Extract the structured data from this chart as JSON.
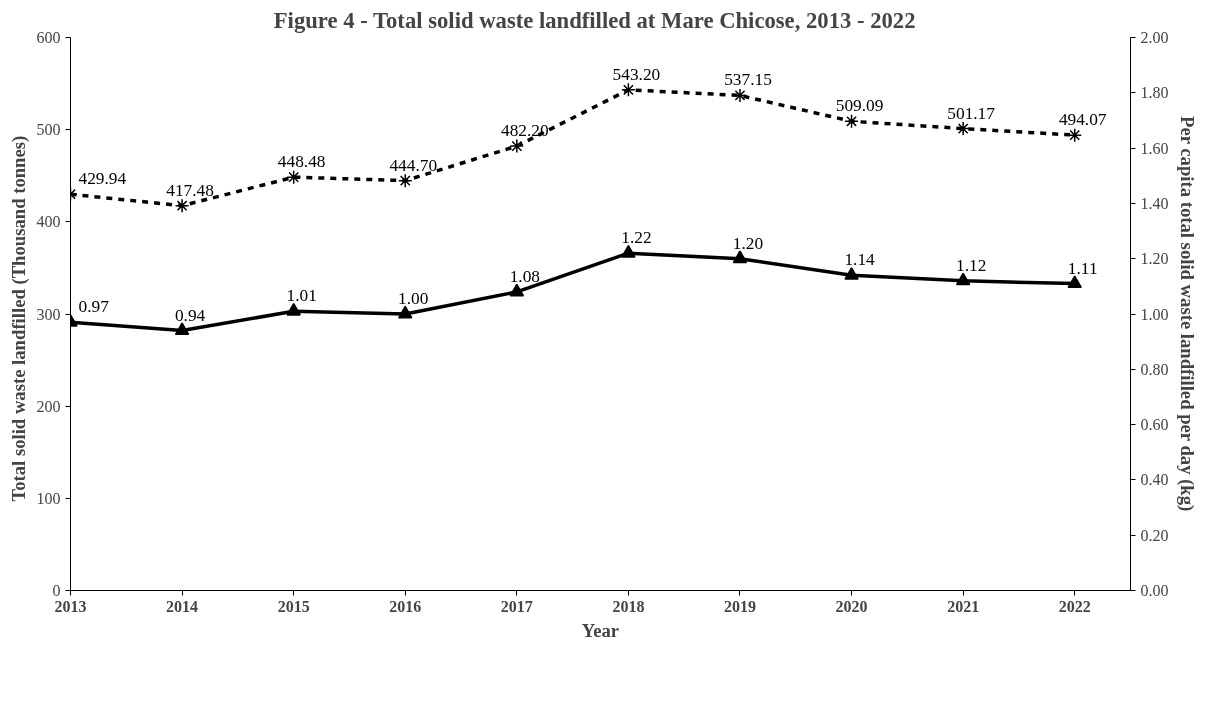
{
  "chart_data": {
    "type": "line",
    "title": "Figure 4 - Total solid  waste landfilled  at Mare Chicose, 2013 - 2022",
    "xlabel": "Year",
    "ylabel": "Total solid waste landfilled  (Thousand  tonnes)",
    "y2label": "Per capita total solid waste landfilled per day (kg)",
    "categories": [
      "2013",
      "2014",
      "2015",
      "2016",
      "2017",
      "2018",
      "2019",
      "2020",
      "2021",
      "2022"
    ],
    "series": [
      {
        "color": "#000000",
        "line_style": "dashed",
        "marker": "cross",
        "values": [
          429.94,
          417.48,
          448.48,
          444.7,
          482.2,
          543.2,
          537.15,
          509.09,
          501.17,
          494.07
        ],
        "value_labels": [
          "429.94",
          "417.48",
          "448.48",
          "444.70",
          "482.20",
          "543.20",
          "537.15",
          "509.09",
          "501.17",
          "494.07"
        ]
      },
      {
        "color": "#000000",
        "line_style": "solid",
        "marker": "triangle",
        "axis": "y2",
        "values": [
          0.97,
          0.94,
          1.01,
          1.0,
          1.08,
          1.22,
          1.2,
          1.14,
          1.12,
          1.11
        ],
        "value_labels": [
          "0.97",
          "0.94",
          "1.01",
          "1.00",
          "1.08",
          "1.22",
          "1.20",
          "1.14",
          "1.12",
          "1.11"
        ]
      }
    ],
    "ylim": [
      0,
      600
    ],
    "yticks": [
      0,
      100,
      200,
      300,
      400,
      500,
      600
    ],
    "y2lim": [
      0,
      2
    ],
    "y2ticks": [
      {
        "value": 0,
        "label": "0.00"
      },
      {
        "value": 0.2,
        "label": "0.20"
      },
      {
        "value": 0.4,
        "label": "0.40"
      },
      {
        "value": 0.6,
        "label": "0.60"
      },
      {
        "value": 0.8,
        "label": "0.80"
      },
      {
        "value": 1.0,
        "label": "1.00"
      },
      {
        "value": 1.2,
        "label": "1.20"
      },
      {
        "value": 1.4,
        "label": "1.40"
      },
      {
        "value": 1.6,
        "label": "1.60"
      },
      {
        "value": 1.8,
        "label": "1.80"
      },
      {
        "value": 2.0,
        "label": "2.00"
      }
    ],
    "grid": false
  }
}
